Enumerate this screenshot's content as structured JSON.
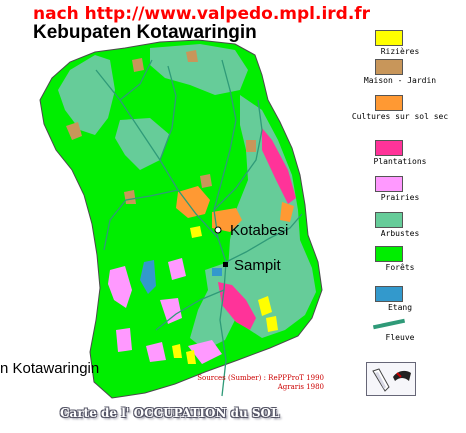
{
  "header": {
    "source_url": "nach http://www.valpedo.mpl.ird.fr",
    "title": "Kebupaten Kotawaringin"
  },
  "map": {
    "place_labels": [
      "Kotabesi",
      "Sampit",
      "n Kotawaringin"
    ]
  },
  "legend": {
    "items": [
      {
        "label": "Rizières",
        "color": "#ffff00",
        "kind": "area"
      },
      {
        "label": "Maison - Jardin",
        "color": "#c8965a",
        "kind": "area"
      },
      {
        "label": "Cultures sur sol sec",
        "color": "#ff9933",
        "kind": "area"
      },
      {
        "label": "Plantations",
        "color": "#ff3399",
        "kind": "area"
      },
      {
        "label": "Prairies",
        "color": "#ff99ff",
        "kind": "area"
      },
      {
        "label": "Arbustes",
        "color": "#66cc99",
        "kind": "area"
      },
      {
        "label": "Forêts",
        "color": "#00ee00",
        "kind": "area"
      },
      {
        "label": "Etang",
        "color": "#3399cc",
        "kind": "area"
      },
      {
        "label": "Fleuve",
        "color": "#2f9a78",
        "kind": "line"
      }
    ]
  },
  "sources": {
    "line1": "Sources (Sumber) : RePPProT 1990",
    "line2": "Agraris 1980"
  },
  "footer": {
    "caption": "Carte de l' OCCUPATION du SOL"
  },
  "colors": {
    "forest": "#00ee00",
    "shrub": "#66cc99",
    "river": "#2f9a78",
    "rice": "#ffff00",
    "garden": "#c8965a",
    "dry_crops": "#ff9933",
    "plantation": "#ff3399",
    "meadow": "#ff99ff",
    "pond": "#3399cc"
  }
}
